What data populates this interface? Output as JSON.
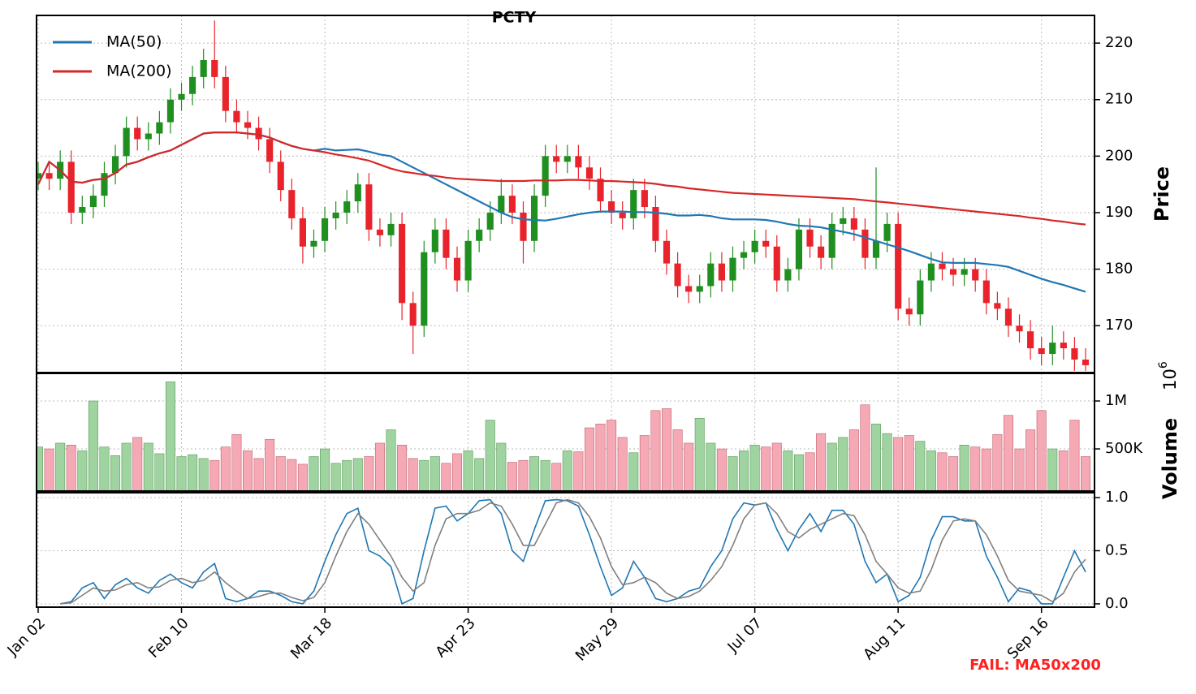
{
  "chart_data": [
    {
      "type": "candlestick",
      "title": "PCTY",
      "ylabel": "Price",
      "categories": [
        "Jan 02",
        null,
        null,
        null,
        null,
        null,
        null,
        null,
        null,
        null,
        null,
        null,
        null,
        "Feb 10",
        null,
        null,
        null,
        null,
        null,
        null,
        null,
        null,
        null,
        null,
        null,
        null,
        "Mar 18",
        null,
        null,
        null,
        null,
        null,
        null,
        null,
        null,
        null,
        null,
        null,
        null,
        "Apr 23",
        null,
        null,
        null,
        null,
        null,
        null,
        null,
        null,
        null,
        null,
        null,
        null,
        "May 29",
        null,
        null,
        null,
        null,
        null,
        null,
        null,
        null,
        null,
        null,
        null,
        null,
        "Jul 07",
        null,
        null,
        null,
        null,
        null,
        null,
        null,
        null,
        null,
        null,
        null,
        null,
        "Aug 11",
        null,
        null,
        null,
        null,
        null,
        null,
        null,
        null,
        null,
        null,
        null,
        null,
        "Sep 16",
        null,
        null,
        null,
        null
      ],
      "open": [
        196,
        197,
        196,
        199,
        190,
        191,
        193,
        197,
        200,
        205,
        203,
        204,
        206,
        210,
        211,
        214,
        217,
        214,
        208,
        206,
        205,
        203,
        199,
        194,
        189,
        184,
        185,
        189,
        190,
        192,
        195,
        187,
        186,
        188,
        174,
        170,
        183,
        187,
        182,
        178,
        185,
        187,
        190,
        193,
        190,
        185,
        193,
        200,
        199,
        200,
        198,
        196,
        192,
        190,
        189,
        194,
        191,
        185,
        181,
        177,
        176,
        177,
        181,
        178,
        182,
        183,
        185,
        184,
        178,
        180,
        187,
        184,
        182,
        188,
        189,
        187,
        182,
        185,
        188,
        173,
        172,
        178,
        181,
        180,
        179,
        180,
        178,
        174,
        173,
        170,
        169,
        166,
        165,
        167,
        166,
        164
      ],
      "high": [
        199,
        199,
        201,
        201,
        193,
        195,
        199,
        202,
        207,
        207,
        206,
        208,
        212,
        213,
        216,
        219,
        224,
        216,
        210,
        208,
        207,
        205,
        201,
        196,
        191,
        187,
        191,
        192,
        194,
        197,
        197,
        189,
        190,
        190,
        176,
        185,
        189,
        189,
        184,
        187,
        189,
        192,
        196,
        195,
        192,
        195,
        202,
        202,
        202,
        202,
        200,
        198,
        194,
        192,
        196,
        196,
        193,
        187,
        183,
        179,
        179,
        183,
        183,
        184,
        185,
        187,
        187,
        186,
        182,
        189,
        189,
        186,
        190,
        191,
        191,
        189,
        198,
        190,
        190,
        175,
        180,
        183,
        183,
        182,
        182,
        182,
        180,
        176,
        175,
        172,
        171,
        168,
        170,
        169,
        168,
        166
      ],
      "low": [
        194,
        194,
        194,
        188,
        188,
        189,
        191,
        195,
        198,
        201,
        201,
        202,
        204,
        208,
        209,
        212,
        212,
        206,
        204,
        203,
        201,
        197,
        192,
        187,
        181,
        182,
        183,
        187,
        188,
        190,
        185,
        184,
        184,
        171,
        165,
        168,
        181,
        180,
        176,
        176,
        183,
        185,
        188,
        188,
        181,
        183,
        191,
        197,
        197,
        196,
        194,
        190,
        188,
        187,
        187,
        189,
        183,
        179,
        175,
        174,
        174,
        175,
        176,
        176,
        180,
        181,
        182,
        176,
        176,
        178,
        182,
        180,
        180,
        186,
        185,
        180,
        180,
        183,
        171,
        170,
        170,
        176,
        178,
        177,
        177,
        176,
        172,
        171,
        168,
        167,
        164,
        163,
        163,
        164,
        162,
        162
      ],
      "close": [
        197,
        196,
        199,
        190,
        191,
        193,
        197,
        200,
        205,
        203,
        204,
        206,
        210,
        211,
        214,
        217,
        214,
        208,
        206,
        205,
        203,
        199,
        194,
        189,
        184,
        185,
        189,
        190,
        192,
        195,
        187,
        186,
        188,
        174,
        170,
        183,
        187,
        182,
        178,
        185,
        187,
        190,
        193,
        190,
        185,
        193,
        200,
        199,
        200,
        198,
        196,
        192,
        190,
        189,
        194,
        191,
        185,
        181,
        177,
        176,
        177,
        181,
        178,
        182,
        183,
        185,
        184,
        178,
        180,
        187,
        184,
        182,
        188,
        189,
        187,
        182,
        185,
        188,
        173,
        172,
        178,
        181,
        180,
        179,
        180,
        178,
        174,
        173,
        170,
        169,
        166,
        165,
        167,
        166,
        164,
        163
      ],
      "up_color": "#1f8f1f",
      "down_color": "#e8232b",
      "series": [
        {
          "name": "MA(50)",
          "color": "#1f77b4",
          "values": [
            195,
            199,
            197.5,
            195.5,
            195.3,
            195.8,
            196,
            197,
            198.5,
            199,
            199.8,
            200.5,
            201,
            202,
            203,
            204,
            204.2,
            204.2,
            204.2,
            204,
            203.8,
            203.3,
            202.5,
            201.8,
            201.3,
            201,
            201.3,
            201,
            201.1,
            201.2,
            200.8,
            200.3,
            200,
            199,
            198,
            197,
            196,
            195,
            194,
            193,
            192,
            191,
            190,
            189.2,
            188.8,
            188.7,
            188.6,
            188.9,
            189.3,
            189.7,
            190,
            190.2,
            190.2,
            190.2,
            190.1,
            190.1,
            190,
            189.8,
            189.5,
            189.5,
            189.6,
            189.4,
            189,
            188.8,
            188.8,
            188.8,
            188.7,
            188.4,
            188,
            187.7,
            187.6,
            187.4,
            187,
            186.6,
            186.2,
            185.6,
            185,
            184.4,
            183.8,
            183.2,
            182.5,
            181.8,
            181.2,
            181.1,
            181.1,
            181.1,
            180.9,
            180.7,
            180.4,
            179.7,
            179,
            178.3,
            177.7,
            177.2,
            176.6,
            176
          ]
        },
        {
          "name": "MA(200)",
          "color": "#d62728",
          "values": [
            195,
            199,
            197.5,
            195.5,
            195.3,
            195.8,
            196,
            197,
            198.5,
            199,
            199.8,
            200.5,
            201,
            202,
            203,
            204,
            204.2,
            204.2,
            204.2,
            204,
            203.8,
            203.3,
            202.5,
            201.8,
            201.3,
            201,
            200.7,
            200.3,
            200,
            199.6,
            199.2,
            198.5,
            197.8,
            197.3,
            197,
            196.7,
            196.5,
            196.2,
            196,
            195.9,
            195.8,
            195.7,
            195.6,
            195.6,
            195.6,
            195.7,
            195.7,
            195.7,
            195.8,
            195.8,
            195.7,
            195.6,
            195.6,
            195.5,
            195.4,
            195.3,
            195.1,
            194.8,
            194.6,
            194.3,
            194.1,
            193.9,
            193.7,
            193.5,
            193.4,
            193.3,
            193.2,
            193.1,
            193,
            192.9,
            192.8,
            192.7,
            192.6,
            192.5,
            192.4,
            192.2,
            192,
            191.8,
            191.6,
            191.4,
            191.2,
            191,
            190.8,
            190.6,
            190.4,
            190.2,
            190,
            189.8,
            189.6,
            189.4,
            189.1,
            188.9,
            188.6,
            188.4,
            188.1,
            187.9
          ]
        }
      ],
      "ylim": [
        161.7,
        224.9
      ],
      "yticks": [
        170,
        180,
        190,
        200,
        210,
        220
      ],
      "grid": true,
      "legend": "upper left"
    },
    {
      "type": "bar",
      "ylabel": "Volume",
      "exponent": {
        "base": "10",
        "power": "6"
      },
      "values": [
        520000,
        500000,
        560000,
        540000,
        480000,
        1000000,
        520000,
        430000,
        560000,
        620000,
        560000,
        450000,
        1200000,
        420000,
        440000,
        400000,
        380000,
        520000,
        650000,
        480000,
        400000,
        600000,
        420000,
        390000,
        340000,
        420000,
        500000,
        350000,
        380000,
        400000,
        420000,
        560000,
        700000,
        540000,
        400000,
        380000,
        420000,
        350000,
        450000,
        480000,
        400000,
        800000,
        560000,
        360000,
        380000,
        420000,
        380000,
        350000,
        480000,
        470000,
        720000,
        760000,
        800000,
        620000,
        460000,
        640000,
        900000,
        920000,
        700000,
        560000,
        820000,
        560000,
        500000,
        420000,
        480000,
        540000,
        520000,
        560000,
        480000,
        440000,
        460000,
        660000,
        560000,
        620000,
        700000,
        960000,
        760000,
        660000,
        620000,
        640000,
        580000,
        480000,
        460000,
        420000,
        540000,
        520000,
        500000,
        650000,
        850000,
        500000,
        700000,
        900000,
        500000,
        480000,
        800000,
        420000
      ],
      "up_color": "#9fd4a0",
      "down_color": "#f5a9b4",
      "ylim": [
        60000,
        1288000
      ],
      "yticks": [
        {
          "value": 500000,
          "label": "500K"
        },
        {
          "value": 1000000,
          "label": "1M"
        }
      ],
      "grid": true
    },
    {
      "type": "line",
      "series": [
        {
          "color": "#1f77b4",
          "values": [
            null,
            null,
            0,
            0.02,
            0.15,
            0.2,
            0.05,
            0.18,
            0.24,
            0.15,
            0.1,
            0.22,
            0.28,
            0.2,
            0.15,
            0.3,
            0.38,
            0.05,
            0.02,
            0.05,
            0.12,
            0.12,
            0.08,
            0.02,
            0,
            0.12,
            0.4,
            0.65,
            0.85,
            0.9,
            0.5,
            0.45,
            0.35,
            0,
            0.05,
            0.5,
            0.9,
            0.92,
            0.78,
            0.85,
            0.97,
            0.98,
            0.85,
            0.5,
            0.4,
            0.7,
            0.97,
            0.98,
            0.97,
            0.92,
            0.65,
            0.35,
            0.08,
            0.15,
            0.4,
            0.25,
            0.05,
            0.02,
            0.05,
            0.12,
            0.15,
            0.35,
            0.5,
            0.8,
            0.95,
            0.93,
            0.95,
            0.7,
            0.5,
            0.7,
            0.85,
            0.68,
            0.88,
            0.88,
            0.75,
            0.4,
            0.2,
            0.28,
            0.02,
            0.08,
            0.25,
            0.6,
            0.82,
            0.82,
            0.78,
            0.78,
            0.45,
            0.25,
            0.02,
            0.15,
            0.12,
            0,
            0,
            0.25,
            0.5,
            0.3
          ]
        },
        {
          "color": "#808080",
          "values": [
            null,
            null,
            0,
            0.01,
            0.08,
            0.15,
            0.12,
            0.13,
            0.18,
            0.2,
            0.15,
            0.16,
            0.22,
            0.24,
            0.2,
            0.22,
            0.3,
            0.2,
            0.12,
            0.05,
            0.07,
            0.1,
            0.1,
            0.06,
            0.03,
            0.06,
            0.2,
            0.45,
            0.68,
            0.85,
            0.75,
            0.6,
            0.45,
            0.25,
            0.12,
            0.2,
            0.55,
            0.8,
            0.85,
            0.85,
            0.88,
            0.95,
            0.92,
            0.75,
            0.55,
            0.55,
            0.75,
            0.95,
            0.98,
            0.95,
            0.82,
            0.62,
            0.35,
            0.18,
            0.2,
            0.25,
            0.2,
            0.1,
            0.05,
            0.07,
            0.12,
            0.22,
            0.35,
            0.55,
            0.8,
            0.93,
            0.95,
            0.85,
            0.68,
            0.62,
            0.7,
            0.75,
            0.8,
            0.85,
            0.83,
            0.65,
            0.4,
            0.28,
            0.15,
            0.1,
            0.12,
            0.32,
            0.6,
            0.78,
            0.8,
            0.78,
            0.65,
            0.45,
            0.22,
            0.12,
            0.1,
            0.08,
            0.02,
            0.1,
            0.3,
            0.42
          ]
        }
      ],
      "ylim": [
        -0.031,
        1.046
      ],
      "yticks": [
        {
          "value": 0,
          "label": "0.0"
        },
        {
          "value": 0.5,
          "label": "0.5"
        },
        {
          "value": 1,
          "label": "1.0"
        }
      ],
      "grid": true
    }
  ],
  "footer": "FAIL: MA50x200"
}
